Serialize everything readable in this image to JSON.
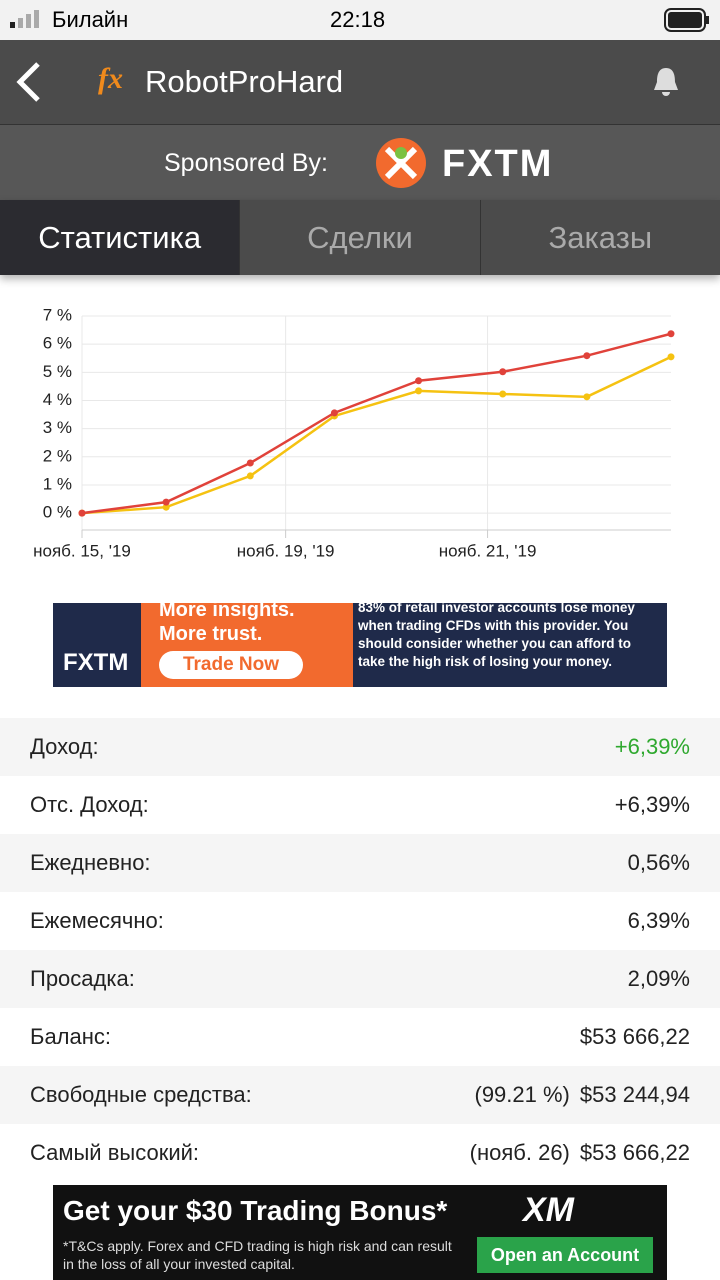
{
  "status_bar": {
    "carrier": "Билайн",
    "time": "22:18"
  },
  "header": {
    "title": "RobotProHard",
    "sponsored_by": "Sponsored By:",
    "sponsor": "FXTM"
  },
  "tabs": [
    "Статистика",
    "Сделки",
    "Заказы"
  ],
  "chart_data": {
    "type": "line",
    "x": [
      0,
      1,
      2,
      3,
      4,
      5,
      6,
      7
    ],
    "xlim": [
      0,
      7
    ],
    "xticks": [
      {
        "value": 0,
        "label": "нояб. 15, '19"
      },
      {
        "value": 2.42,
        "label": "нояб. 19, '19"
      },
      {
        "value": 4.82,
        "label": "нояб. 21, '19"
      }
    ],
    "ylim": [
      -0.6,
      7
    ],
    "yticks": [
      {
        "value": 0,
        "label": "0 %"
      },
      {
        "value": 1,
        "label": "1 %"
      },
      {
        "value": 2,
        "label": "2 %"
      },
      {
        "value": 3,
        "label": "3 %"
      },
      {
        "value": 4,
        "label": "4 %"
      },
      {
        "value": 5,
        "label": "5 %"
      },
      {
        "value": 6,
        "label": "6 %"
      },
      {
        "value": 7,
        "label": "7 %"
      }
    ],
    "grid": true,
    "series": [
      {
        "color": "#f5c211",
        "values": [
          0,
          0.21,
          1.32,
          3.45,
          4.34,
          4.23,
          4.13,
          5.55
        ]
      },
      {
        "color": "#e0423a",
        "values": [
          0,
          0.39,
          1.78,
          3.56,
          4.7,
          5.02,
          5.59,
          6.37
        ]
      }
    ]
  },
  "ad_top": {
    "brand": "FXTM",
    "line1": "More insights.",
    "line2": "More trust.",
    "button": "Trade Now",
    "disclaimer": "83% of retail investor accounts lose money when trading CFDs with this provider. You should consider whether you can afford to take the high risk of losing your money."
  },
  "stats": [
    {
      "label": "Доход:",
      "value": "+6,39%"
    },
    {
      "label": "Отс. Доход:",
      "value": "+6,39%"
    },
    {
      "label": "Ежедневно:",
      "value": "0,56%"
    },
    {
      "label": "Ежемесячно:",
      "value": "6,39%"
    },
    {
      "label": "Просадка:",
      "value": "2,09%"
    },
    {
      "label": "Баланс:",
      "value": "$53 666,22"
    },
    {
      "label": "Свободные средства:",
      "note": "(99.21 %)",
      "value": "$53 244,94"
    },
    {
      "label": "Самый высокий:",
      "note": "(нояб. 26)",
      "value": "$53 666,22"
    }
  ],
  "ad_bottom": {
    "headline": "Get your $30 Trading Bonus*",
    "disclaimer": "*T&Cs apply. Forex and CFD trading is high risk and can result in the loss of all your invested capital.",
    "brand": "XM",
    "button": "Open an Account"
  }
}
